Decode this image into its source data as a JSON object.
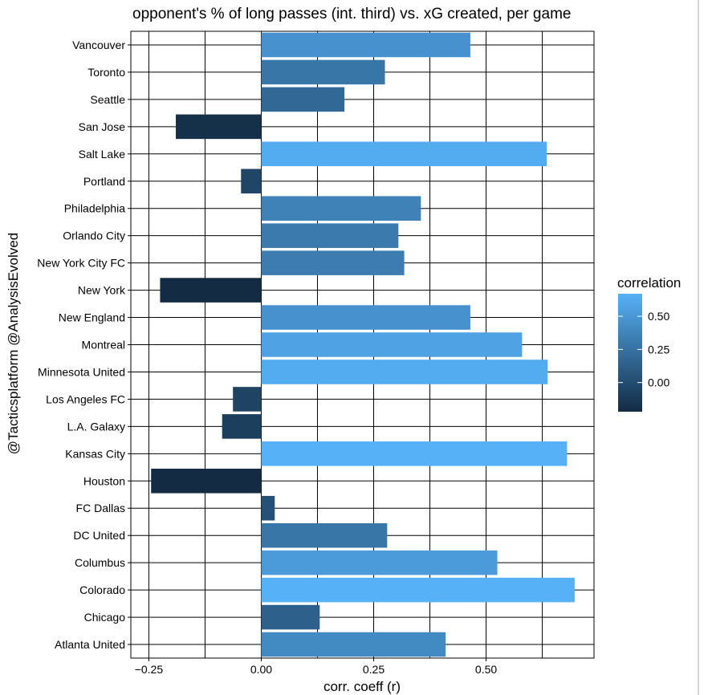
{
  "chart_data": {
    "type": "bar",
    "orientation": "horizontal",
    "title": "opponent's % of long passes (int. third) vs. xG created, per game",
    "xlabel": "corr. coeff (r)",
    "ylabel": "@Tacticsplatform @AnalysisEvolved",
    "xlim": [
      -0.29,
      0.74
    ],
    "xticks": [
      -0.25,
      0.0,
      0.25,
      0.5
    ],
    "xtick_labels": [
      "−0.25",
      "0.00",
      "0.25",
      "0.50"
    ],
    "grid": true,
    "legend": {
      "title": "correlation",
      "placement": "right",
      "range": [
        -0.22,
        0.67
      ],
      "ticks": [
        0.5,
        0.25,
        0.0
      ],
      "tick_labels": [
        "0.50",
        "0.25",
        "0.00"
      ],
      "color_low": "#132B43",
      "color_high": "#56B1F7"
    },
    "categories": [
      "Vancouver",
      "Toronto",
      "Seattle",
      "San Jose",
      "Salt Lake",
      "Portland",
      "Philadelphia",
      "Orlando City",
      "New York City FC",
      "New York",
      "New England",
      "Montreal",
      "Minnesota United",
      "Los Angeles FC",
      "L.A. Galaxy",
      "Kansas City",
      "Houston",
      "FC Dallas",
      "DC United",
      "Columbus",
      "Colorado",
      "Chicago",
      "Atlanta United"
    ],
    "values": [
      0.465,
      0.275,
      0.185,
      -0.19,
      0.635,
      -0.045,
      0.355,
      0.305,
      0.318,
      -0.225,
      0.465,
      0.58,
      0.637,
      -0.063,
      -0.087,
      0.68,
      -0.245,
      0.03,
      0.28,
      0.525,
      0.697,
      0.13,
      0.41
    ]
  }
}
